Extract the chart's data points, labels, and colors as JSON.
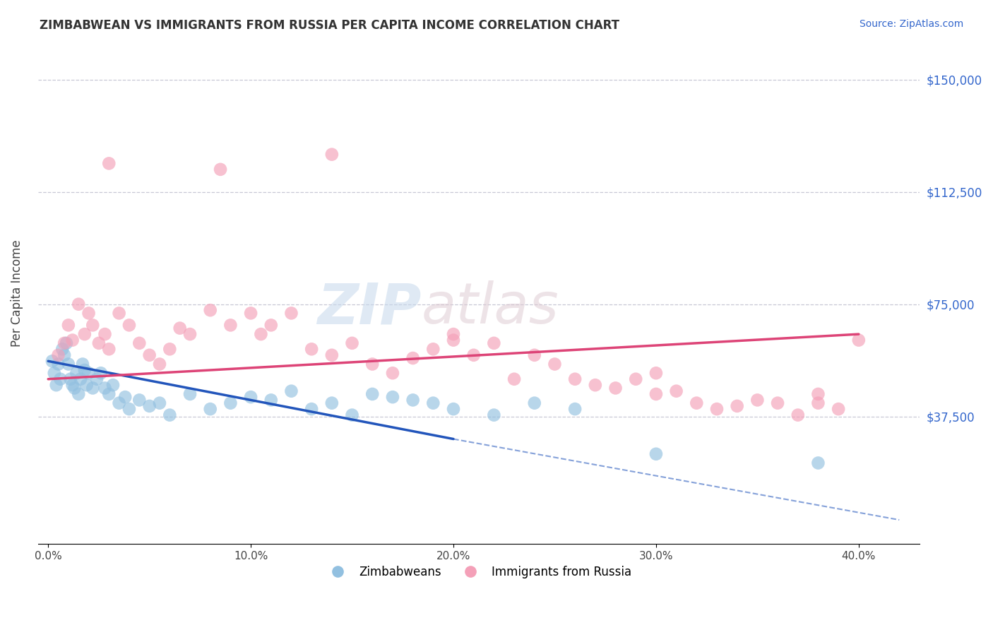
{
  "title": "ZIMBABWEAN VS IMMIGRANTS FROM RUSSIA PER CAPITA INCOME CORRELATION CHART",
  "source": "Source: ZipAtlas.com",
  "xlabel_ticks": [
    "0.0%",
    "10.0%",
    "20.0%",
    "30.0%",
    "40.0%"
  ],
  "xlabel_vals": [
    0.0,
    10.0,
    20.0,
    30.0,
    40.0
  ],
  "ylabel": "Per Capita Income",
  "ylim": [
    -5000,
    162500
  ],
  "xlim": [
    -0.5,
    43.0
  ],
  "yticks": [
    37500,
    75000,
    112500,
    150000
  ],
  "ytick_labels": [
    "$37,500",
    "$75,000",
    "$112,500",
    "$150,000"
  ],
  "blue_color": "#92c0e0",
  "pink_color": "#f4a0b8",
  "trend_blue": "#2255bb",
  "trend_pink": "#dd4477",
  "axis_label_color": "#3366cc",
  "bg_color": "#ffffff",
  "grid_color": "#bbbbcc",
  "blue_scatter_x": [
    0.2,
    0.3,
    0.4,
    0.5,
    0.6,
    0.7,
    0.8,
    0.9,
    1.0,
    1.1,
    1.2,
    1.3,
    1.4,
    1.5,
    1.6,
    1.7,
    1.8,
    1.9,
    2.0,
    2.2,
    2.4,
    2.6,
    2.8,
    3.0,
    3.2,
    3.5,
    3.8,
    4.0,
    4.5,
    5.0,
    5.5,
    6.0,
    7.0,
    8.0,
    9.0,
    10.0,
    11.0,
    12.0,
    13.0,
    14.0,
    15.0,
    16.0,
    17.0,
    18.0,
    19.0,
    20.0,
    22.0,
    24.0,
    26.0,
    30.0,
    38.0
  ],
  "blue_scatter_y": [
    56000,
    52000,
    48000,
    55000,
    50000,
    60000,
    58000,
    62000,
    55000,
    50000,
    48000,
    47000,
    52000,
    45000,
    50000,
    55000,
    53000,
    48000,
    52000,
    47000,
    50000,
    52000,
    47000,
    45000,
    48000,
    42000,
    44000,
    40000,
    43000,
    41000,
    42000,
    38000,
    45000,
    40000,
    42000,
    44000,
    43000,
    46000,
    40000,
    42000,
    38000,
    45000,
    44000,
    43000,
    42000,
    40000,
    38000,
    42000,
    40000,
    25000,
    22000
  ],
  "pink_scatter_x": [
    0.5,
    0.8,
    1.0,
    1.2,
    1.5,
    1.8,
    2.0,
    2.2,
    2.5,
    2.8,
    3.0,
    3.5,
    4.0,
    4.5,
    5.0,
    5.5,
    6.0,
    6.5,
    7.0,
    8.0,
    9.0,
    10.0,
    10.5,
    11.0,
    12.0,
    13.0,
    14.0,
    15.0,
    16.0,
    17.0,
    18.0,
    19.0,
    20.0,
    21.0,
    22.0,
    23.0,
    24.0,
    25.0,
    26.0,
    27.0,
    28.0,
    29.0,
    30.0,
    31.0,
    32.0,
    33.0,
    34.0,
    35.0,
    36.0,
    37.0,
    38.0,
    39.0,
    40.0,
    3.0,
    8.5,
    14.0,
    20.0,
    30.0,
    38.0
  ],
  "pink_scatter_y": [
    58000,
    62000,
    68000,
    63000,
    75000,
    65000,
    72000,
    68000,
    62000,
    65000,
    60000,
    72000,
    68000,
    62000,
    58000,
    55000,
    60000,
    67000,
    65000,
    73000,
    68000,
    72000,
    65000,
    68000,
    72000,
    60000,
    58000,
    62000,
    55000,
    52000,
    57000,
    60000,
    63000,
    58000,
    62000,
    50000,
    58000,
    55000,
    50000,
    48000,
    47000,
    50000,
    52000,
    46000,
    42000,
    40000,
    41000,
    43000,
    42000,
    38000,
    45000,
    40000,
    63000,
    122000,
    120000,
    125000,
    65000,
    45000,
    42000
  ],
  "blue_trend_x0": 0.0,
  "blue_trend_y0": 56000,
  "blue_trend_x1": 20.0,
  "blue_trend_y1": 30000,
  "blue_dash_x1": 42.0,
  "blue_dash_y1": 3000,
  "pink_trend_x0": 0.0,
  "pink_trend_y0": 50000,
  "pink_trend_x1": 40.0,
  "pink_trend_y1": 65000
}
